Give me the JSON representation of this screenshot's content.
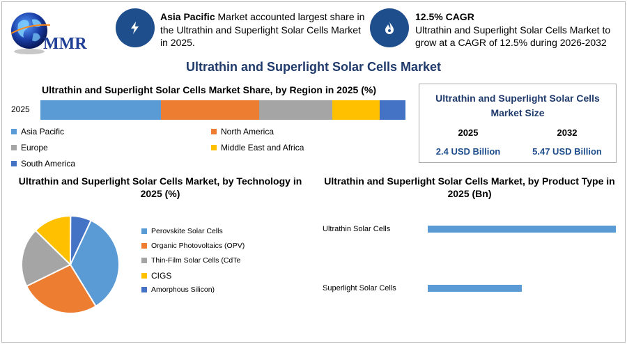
{
  "logo": {
    "text": "MMR"
  },
  "highlights": [
    {
      "icon": "lightning-icon",
      "bold": "Asia Pacific",
      "text": " Market accounted largest share in the Ultrathin and Superlight Solar Cells Market in 2025."
    },
    {
      "icon": "flame-icon",
      "bold": "12.5% CAGR",
      "text": "Ultrathin and Superlight Solar Cells Market to grow at a CAGR of 12.5% during 2026-2032"
    }
  ],
  "main_title": "Ultrathin and Superlight Solar Cells Market",
  "market_size": {
    "title": "Ultrathin and Superlight Solar Cells Market Size",
    "years": [
      "2025",
      "2032"
    ],
    "values": [
      "2.4 USD Billion",
      "5.47 USD Billion"
    ]
  },
  "colors": {
    "blue": "#5b9bd5",
    "orange": "#ed7d31",
    "gray": "#a5a5a5",
    "yellow": "#ffc000",
    "darkblue": "#4472c4",
    "navy": "#1f4e8c"
  },
  "chart_data": [
    {
      "type": "bar",
      "stacked": true,
      "orientation": "horizontal",
      "title": "Ultrathin and Superlight Solar Cells Market Share, by Region in 2025 (%)",
      "categories": [
        "2025"
      ],
      "series": [
        {
          "name": "Asia Pacific",
          "values": [
            33
          ],
          "color": "#5b9bd5"
        },
        {
          "name": "North America",
          "values": [
            27
          ],
          "color": "#ed7d31"
        },
        {
          "name": "Europe",
          "values": [
            20
          ],
          "color": "#a5a5a5"
        },
        {
          "name": "Middle East and Africa",
          "values": [
            13
          ],
          "color": "#ffc000"
        },
        {
          "name": "South America",
          "values": [
            7
          ],
          "color": "#4472c4"
        }
      ],
      "legend": "bottom"
    },
    {
      "type": "pie",
      "title": "Ultrathin and Superlight Solar Cells Market, by Technology in 2025 (%)",
      "labels": [
        "Perovskite Solar Cells",
        "Organic Photovoltaics (OPV)",
        "Thin-Film Solar Cells (CdTe",
        "CIGS",
        "Amorphous Silicon)"
      ],
      "values": [
        35,
        27,
        20,
        13,
        7
      ],
      "colors": [
        "#5b9bd5",
        "#ed7d31",
        "#a5a5a5",
        "#ffc000",
        "#4472c4"
      ],
      "legend": "right"
    },
    {
      "type": "bar",
      "orientation": "horizontal",
      "title": "Ultrathin and Superlight Solar Cells Market, by Product Type in 2025 (Bn)",
      "categories": [
        "Ultrathin Solar Cells",
        "Superlight Solar Cells"
      ],
      "values": [
        1.6,
        0.8
      ],
      "color": "#5b9bd5"
    }
  ]
}
